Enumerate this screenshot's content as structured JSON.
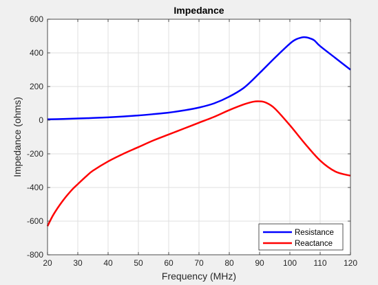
{
  "chart_data": {
    "type": "line",
    "title": "Impedance",
    "xlabel": "Frequency (MHz)",
    "ylabel": "Impedance (ohms)",
    "xlim": [
      20,
      120
    ],
    "ylim": [
      -800,
      600
    ],
    "x_ticks": [
      20,
      30,
      40,
      50,
      60,
      70,
      80,
      90,
      100,
      110,
      120
    ],
    "y_ticks": [
      -800,
      -600,
      -400,
      -200,
      0,
      200,
      400,
      600
    ],
    "grid": true,
    "legend_position": "bottom-right",
    "series": [
      {
        "name": "Resistance",
        "color": "#0000ff",
        "x": [
          20,
          25,
          30,
          35,
          40,
          45,
          50,
          55,
          60,
          65,
          70,
          75,
          80,
          85,
          90,
          95,
          100,
          102,
          104,
          105,
          106,
          108,
          110,
          115,
          120
        ],
        "y": [
          5,
          7,
          10,
          13,
          17,
          22,
          28,
          36,
          45,
          58,
          75,
          100,
          140,
          195,
          280,
          370,
          455,
          480,
          492,
          493,
          490,
          475,
          440,
          370,
          300
        ]
      },
      {
        "name": "Reactance",
        "color": "#ff0000",
        "x": [
          20,
          22,
          25,
          28,
          30,
          33,
          35,
          40,
          45,
          50,
          55,
          60,
          65,
          70,
          75,
          80,
          85,
          88,
          90,
          92,
          95,
          100,
          105,
          110,
          115,
          120
        ],
        "y": [
          -630,
          -560,
          -480,
          -415,
          -380,
          -330,
          -300,
          -245,
          -200,
          -160,
          -120,
          -85,
          -50,
          -15,
          20,
          60,
          95,
          110,
          112,
          105,
          70,
          -30,
          -140,
          -240,
          -305,
          -330
        ]
      }
    ]
  }
}
